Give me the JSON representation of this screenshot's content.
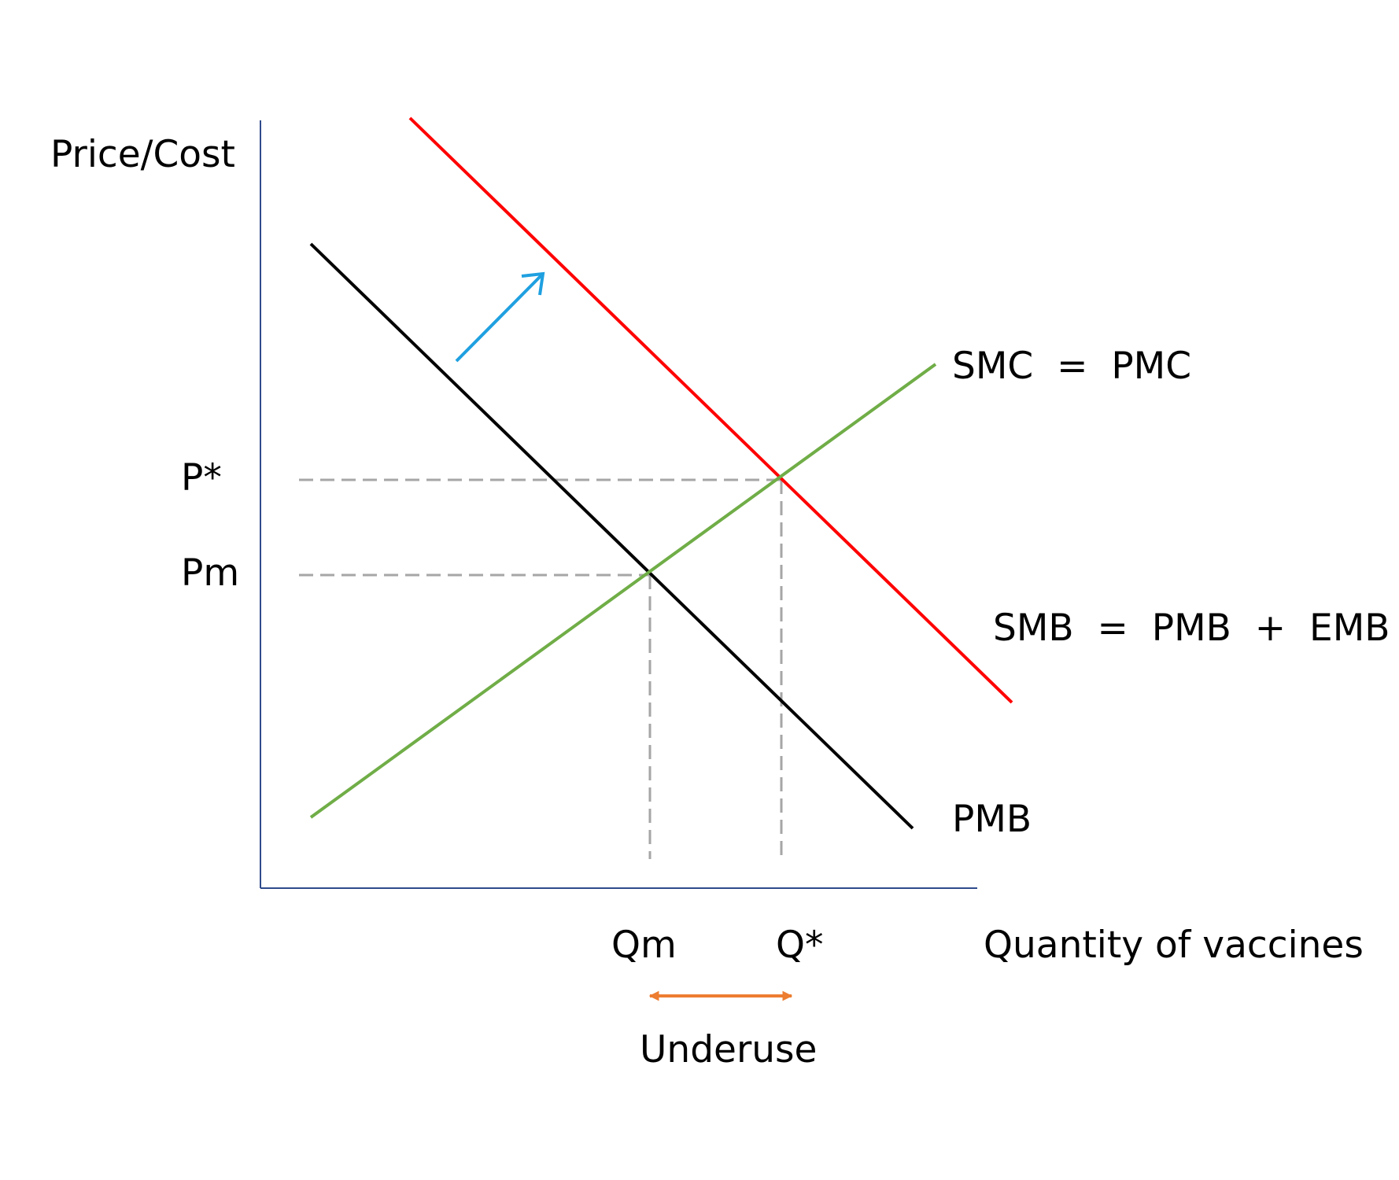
{
  "axes": {
    "y_label": "Price/Cost",
    "x_label": "Quantity of vaccines"
  },
  "curves": {
    "supply_label": "SMC  =  PMC",
    "social_benefit_label": "SMB  =  PMB  +  EMB",
    "private_benefit_label": "PMB"
  },
  "prices": {
    "optimal_label": "P*",
    "market_label": "Pm"
  },
  "quantities": {
    "market_label": "Qm",
    "optimal_label": "Q*"
  },
  "gap": {
    "label": "Underuse"
  },
  "colors": {
    "axis": "#2f4b8c",
    "smb_curve": "#ff0000",
    "pmb_curve": "#000000",
    "smc_curve": "#70ad47",
    "shift_arrow": "#1fa0e0",
    "guide_lines": "#a6a6a6",
    "underuse_arrow": "#ed7d31"
  }
}
